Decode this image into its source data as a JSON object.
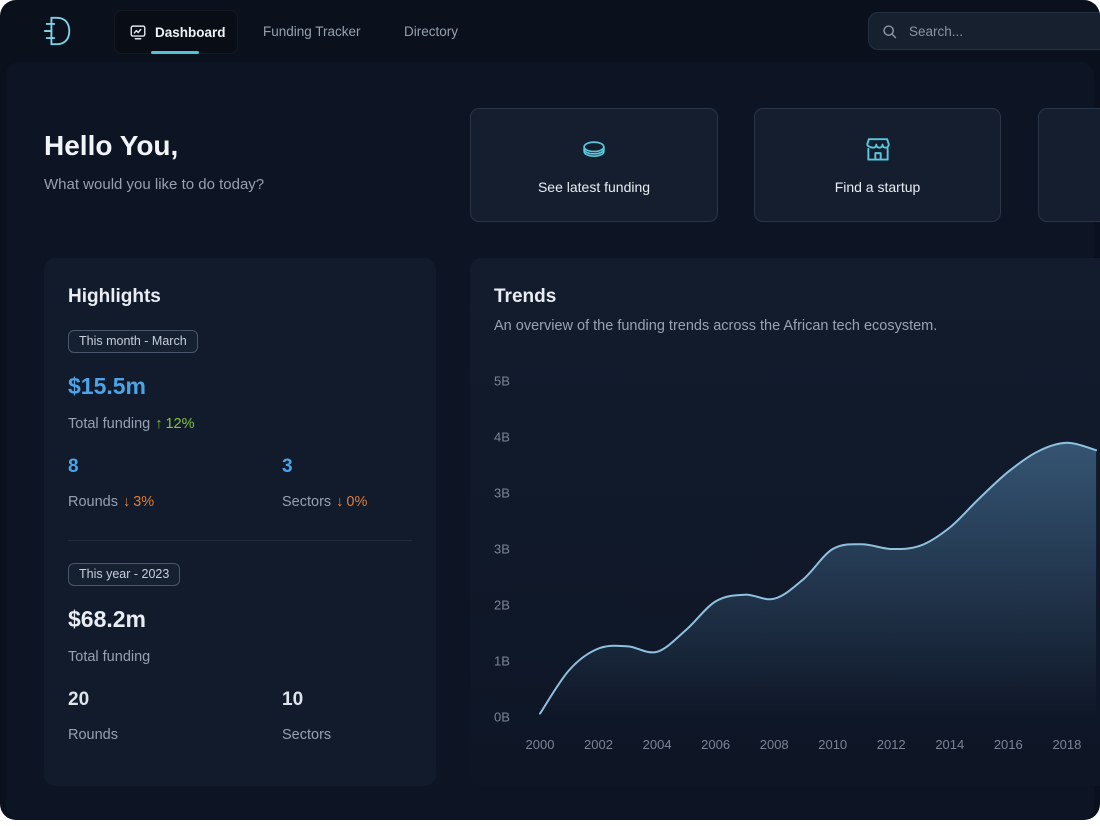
{
  "nav": {
    "items": [
      {
        "label": "Dashboard",
        "active": true
      },
      {
        "label": "Funding Tracker",
        "active": false
      },
      {
        "label": "Directory",
        "active": false
      }
    ],
    "search_placeholder": "Search..."
  },
  "header": {
    "greeting": "Hello You,",
    "subtitle": "What would you like to do today?"
  },
  "actions": {
    "cards": [
      {
        "label": "See latest funding",
        "icon": "coins-icon"
      },
      {
        "label": "Find a startup",
        "icon": "storefront-icon"
      }
    ]
  },
  "highlights": {
    "title": "Highlights",
    "month": {
      "badge": "This month - March",
      "total": "$15.5m",
      "total_label": "Total funding",
      "total_change": "12%",
      "total_change_direction": "up",
      "rounds": "8",
      "rounds_label": "Rounds",
      "rounds_change": "3%",
      "rounds_change_direction": "down",
      "sectors": "3",
      "sectors_label": "Sectors",
      "sectors_change": "0%",
      "sectors_change_direction": "down"
    },
    "year": {
      "badge": "This year - 2023",
      "total": "$68.2m",
      "total_label": "Total funding",
      "rounds": "20",
      "rounds_label": "Rounds",
      "sectors": "10",
      "sectors_label": "Sectors"
    }
  },
  "trends": {
    "title": "Trends",
    "subtitle": "An overview of the funding trends across the African tech ecosystem."
  },
  "icons": {
    "arrow_up": "↑",
    "arrow_down": "↓"
  },
  "colors": {
    "accent_teal": "#4fc3d9",
    "blue": "#4da3e8",
    "green": "#85c33e",
    "orange": "#dd7e3a",
    "panel_bg": "#111b2b",
    "page_bg": "#0d1524"
  },
  "chart_data": {
    "type": "area",
    "title": "Trends",
    "x": [
      2000,
      2001,
      2002,
      2003,
      2004,
      2005,
      2006,
      2007,
      2008,
      2009,
      2010,
      2011,
      2012,
      2013,
      2014,
      2015,
      2016,
      2017,
      2018,
      2019
    ],
    "values": [
      0.05,
      0.7,
      1.02,
      1.05,
      0.97,
      1.3,
      1.72,
      1.82,
      1.76,
      2.05,
      2.5,
      2.57,
      2.5,
      2.55,
      2.82,
      3.25,
      3.65,
      3.95,
      4.08,
      3.97
    ],
    "xlim": [
      2000,
      2019.2
    ],
    "ylim": [
      0,
      5
    ],
    "y_ticks": [
      0,
      0.8333,
      1.6667,
      2.5,
      3.3333,
      4.1667,
      5
    ],
    "y_tick_labels": [
      "0B",
      "1B",
      "2B",
      "3B",
      "3B",
      "4B",
      "5B"
    ],
    "x_ticks": [
      2000,
      2002,
      2004,
      2006,
      2008,
      2010,
      2012,
      2014,
      2016,
      2018
    ],
    "x_tick_labels": [
      "2000",
      "2002",
      "2004",
      "2006",
      "2008",
      "2010",
      "2012",
      "2014",
      "2016",
      "2018"
    ],
    "line_color": "#8fc1de",
    "fill_top_color": "#4d7ba3",
    "grid": false,
    "legend": false
  }
}
